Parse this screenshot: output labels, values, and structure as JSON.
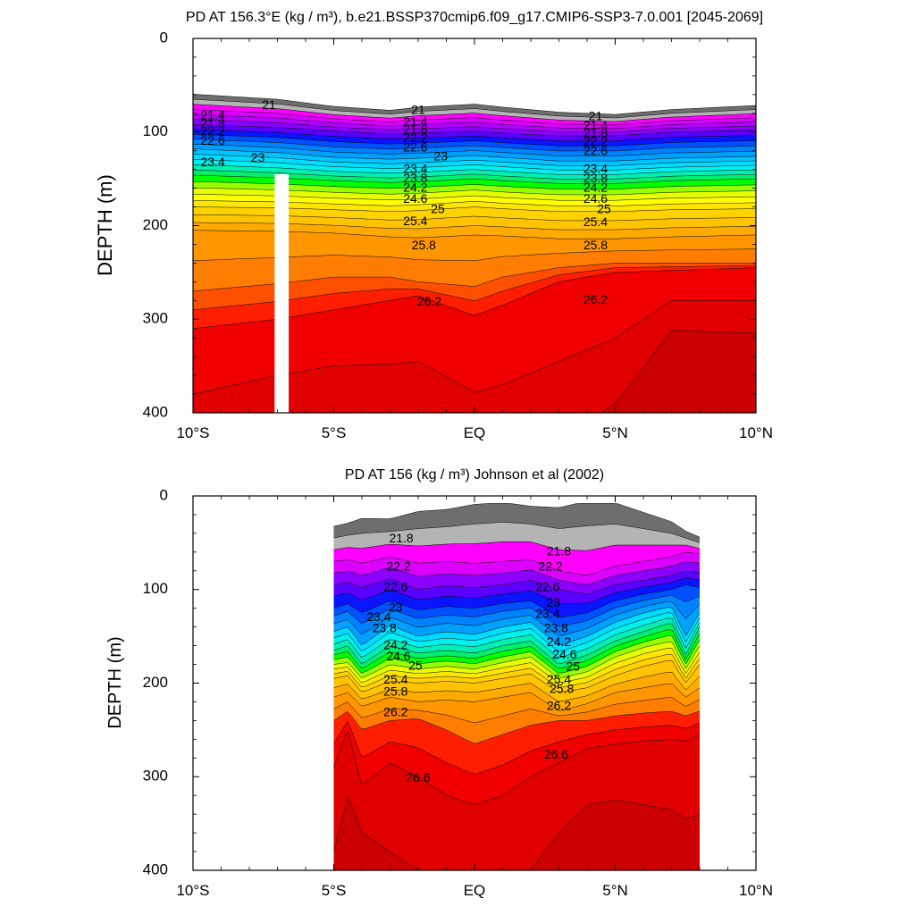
{
  "colors": {
    "isopycnal_fill": [
      "#6e6e6e",
      "#b4b4b4",
      "#ff00ff",
      "#dc00ff",
      "#b400ff",
      "#8c00ff",
      "#5a00ff",
      "#0a14ff",
      "#0050ff",
      "#0082ff",
      "#00a0ff",
      "#00c3ff",
      "#00dcff",
      "#00f0f0",
      "#00f0b4",
      "#00f06e",
      "#00ff00",
      "#96ff00",
      "#e6ff00",
      "#ffff00",
      "#ffe600",
      "#ffd200",
      "#ffc300",
      "#ffaa00",
      "#ff9600",
      "#ff7d00",
      "#ff5000",
      "#ff1e00",
      "#f00000",
      "#e00000",
      "#cc0000"
    ],
    "land_mask": "#b4b4b4",
    "missing": "#ffffff"
  },
  "chart_data": [
    {
      "type": "contour",
      "title": "PD AT 156.3°E (kg / m³), b.e21.BSSP370cmip6.f09_g17.CMIP6-SSP3-7.0.001 [2045-2069]",
      "ylabel": "DEPTH (m)",
      "xlabel": "",
      "xlim": [
        -10,
        10
      ],
      "ylim": [
        0,
        400
      ],
      "y_inverted": true,
      "x_ticks": [
        {
          "x": -10,
          "label": "10°S"
        },
        {
          "x": -5,
          "label": "5°S"
        },
        {
          "x": 0,
          "label": "EQ"
        },
        {
          "x": 5,
          "label": "5°N"
        },
        {
          "x": 10,
          "label": "10°N"
        }
      ],
      "y_ticks": [
        {
          "y": 0,
          "label": "0"
        },
        {
          "y": 100,
          "label": "100"
        },
        {
          "y": 200,
          "label": "200"
        },
        {
          "y": 300,
          "label": "300"
        },
        {
          "y": 400,
          "label": "400"
        }
      ],
      "contour_interval": 0.2,
      "contour_levels_range": [
        20.8,
        26.8
      ],
      "data_extent": [
        -10,
        10
      ],
      "missing_band": [
        -7.1,
        -6.6,
        145
      ],
      "isopycnal_depth_points": {
        "x": [
          -10,
          -7,
          -5,
          -3,
          -2,
          0,
          1,
          3,
          5,
          7,
          10
        ],
        "21.0": [
          65,
          70,
          77,
          81,
          78,
          75,
          78,
          83,
          85,
          80,
          76
        ],
        "22.0": [
          92,
          95,
          99,
          102,
          101,
          99,
          101,
          104,
          104,
          100,
          98
        ],
        "23.0": [
          118,
          122,
          127,
          129,
          128,
          125,
          127,
          131,
          131,
          128,
          126
        ],
        "24.0": [
          146,
          149,
          152,
          154,
          153,
          150,
          152,
          155,
          155,
          152,
          150
        ],
        "25.0": [
          180,
          181,
          183,
          185,
          184,
          180,
          182,
          185,
          185,
          183,
          182
        ],
        "25.6": [
          205,
          206,
          208,
          212,
          213,
          210,
          211,
          214,
          214,
          212,
          210
        ],
        "26.0": [
          270,
          262,
          255,
          255,
          260,
          265,
          255,
          245,
          240,
          240,
          240
        ],
        "26.4": [
          310,
          300,
          290,
          280,
          275,
          296,
          285,
          260,
          250,
          248,
          245
        ],
        "26.6": [
          380,
          360,
          350,
          348,
          345,
          378,
          370,
          345,
          320,
          280,
          280
        ]
      },
      "labels": [
        {
          "x": -7.3,
          "y": 72,
          "text": "21"
        },
        {
          "x": -9.3,
          "y": 83,
          "text": "21.4"
        },
        {
          "x": -9.3,
          "y": 92,
          "text": "21.8"
        },
        {
          "x": -9.3,
          "y": 100,
          "text": "22.2"
        },
        {
          "x": -9.3,
          "y": 110,
          "text": "22.6"
        },
        {
          "x": -9.3,
          "y": 133,
          "text": "23.4"
        },
        {
          "x": -7.7,
          "y": 128,
          "text": "23"
        },
        {
          "x": -2,
          "y": 77,
          "text": "21"
        },
        {
          "x": -2.1,
          "y": 90,
          "text": "21.4"
        },
        {
          "x": -2.1,
          "y": 98,
          "text": "21.8"
        },
        {
          "x": -2.1,
          "y": 107,
          "text": "22.2"
        },
        {
          "x": -2.1,
          "y": 117,
          "text": "22.6"
        },
        {
          "x": -1.2,
          "y": 127,
          "text": "23"
        },
        {
          "x": -2.1,
          "y": 140,
          "text": "23.4"
        },
        {
          "x": -2.1,
          "y": 150,
          "text": "23.8"
        },
        {
          "x": -2.1,
          "y": 160,
          "text": "24.2"
        },
        {
          "x": -2.1,
          "y": 172,
          "text": "24.6"
        },
        {
          "x": -1.3,
          "y": 183,
          "text": "25"
        },
        {
          "x": -2.1,
          "y": 196,
          "text": "25.4"
        },
        {
          "x": -1.8,
          "y": 222,
          "text": "25.8"
        },
        {
          "x": -1.6,
          "y": 282,
          "text": "26.2"
        },
        {
          "x": 4.3,
          "y": 84,
          "text": "21"
        },
        {
          "x": 4.3,
          "y": 94,
          "text": "21.4"
        },
        {
          "x": 4.3,
          "y": 102,
          "text": "21.8"
        },
        {
          "x": 4.3,
          "y": 111,
          "text": "22.2"
        },
        {
          "x": 4.3,
          "y": 121,
          "text": "22.6"
        },
        {
          "x": 4.3,
          "y": 140,
          "text": "23.4"
        },
        {
          "x": 4.3,
          "y": 150,
          "text": "23.8"
        },
        {
          "x": 4.3,
          "y": 160,
          "text": "24.2"
        },
        {
          "x": 4.3,
          "y": 172,
          "text": "24.6"
        },
        {
          "x": 4.6,
          "y": 183,
          "text": "25"
        },
        {
          "x": 4.3,
          "y": 197,
          "text": "25.4"
        },
        {
          "x": 4.3,
          "y": 222,
          "text": "25.8"
        },
        {
          "x": 4.3,
          "y": 280,
          "text": "26.2"
        }
      ]
    },
    {
      "type": "contour",
      "title": "PD AT 156 (kg / m³) Johnson et al (2002)",
      "ylabel": "DEPTH (m)",
      "xlabel": "",
      "xlim": [
        -10,
        10
      ],
      "ylim": [
        0,
        400
      ],
      "y_inverted": true,
      "x_ticks": [
        {
          "x": -10,
          "label": "10°S"
        },
        {
          "x": -5,
          "label": "5°S"
        },
        {
          "x": 0,
          "label": "EQ"
        },
        {
          "x": 5,
          "label": "5°N"
        },
        {
          "x": 10,
          "label": "10°N"
        }
      ],
      "y_ticks": [
        {
          "y": 0,
          "label": "0"
        },
        {
          "y": 100,
          "label": "100"
        },
        {
          "y": 200,
          "label": "200"
        },
        {
          "y": 300,
          "label": "300"
        },
        {
          "y": 400,
          "label": "400"
        }
      ],
      "contour_interval": 0.2,
      "contour_levels_range": [
        21.6,
        26.8
      ],
      "data_extent": [
        -5,
        8
      ],
      "isopycnal_depth_points": {
        "x": [
          -5,
          -4.5,
          -4,
          -3,
          -2,
          -1,
          0,
          1,
          2,
          3,
          4,
          5,
          6,
          7,
          7.5,
          8
        ],
        "21.8": [
          45,
          42,
          40,
          38,
          35,
          33,
          30,
          28,
          30,
          35,
          32,
          30,
          35,
          40,
          45,
          50
        ],
        "22.2": [
          70,
          68,
          72,
          65,
          72,
          70,
          72,
          70,
          68,
          80,
          85,
          75,
          70,
          65,
          60,
          62
        ],
        "22.6": [
          95,
          92,
          98,
          88,
          100,
          96,
          98,
          95,
          90,
          100,
          105,
          95,
          90,
          85,
          80,
          82
        ],
        "23.0": [
          120,
          115,
          125,
          112,
          122,
          118,
          120,
          115,
          112,
          130,
          125,
          112,
          105,
          100,
          95,
          98
        ],
        "23.6": [
          145,
          140,
          160,
          138,
          150,
          145,
          148,
          140,
          135,
          160,
          150,
          135,
          125,
          118,
          150,
          125
        ],
        "24.2": [
          165,
          160,
          180,
          160,
          168,
          165,
          168,
          160,
          155,
          180,
          170,
          155,
          145,
          135,
          170,
          140
        ],
        "24.8": [
          180,
          178,
          195,
          180,
          185,
          182,
          185,
          178,
          172,
          195,
          188,
          172,
          162,
          155,
          185,
          160
        ],
        "25.4": [
          195,
          192,
          210,
          198,
          200,
          198,
          200,
          195,
          190,
          210,
          205,
          192,
          182,
          175,
          200,
          180
        ],
        "25.8": [
          215,
          210,
          225,
          215,
          220,
          218,
          220,
          215,
          210,
          230,
          222,
          210,
          205,
          200,
          215,
          205
        ],
        "26.2": [
          240,
          230,
          250,
          240,
          238,
          250,
          265,
          255,
          245,
          240,
          240,
          235,
          232,
          230,
          235,
          230
        ],
        "26.6": [
          290,
          250,
          310,
          285,
          300,
          320,
          330,
          320,
          300,
          285,
          270,
          265,
          262,
          260,
          262,
          255
        ],
        "26.8": [
          380,
          320,
          360,
          380,
          400,
          400,
          400,
          400,
          400,
          360,
          330,
          325,
          330,
          335,
          345,
          340
        ]
      },
      "labels": [
        {
          "x": -2.6,
          "y": 46,
          "text": "21.8"
        },
        {
          "x": -2.7,
          "y": 76,
          "text": "22.2"
        },
        {
          "x": -2.8,
          "y": 98,
          "text": "22.6"
        },
        {
          "x": -2.8,
          "y": 120,
          "text": "23"
        },
        {
          "x": -3.4,
          "y": 130,
          "text": "23.4"
        },
        {
          "x": -3.2,
          "y": 142,
          "text": "23.8"
        },
        {
          "x": -2.8,
          "y": 160,
          "text": "24.2"
        },
        {
          "x": -2.7,
          "y": 172,
          "text": "24.6"
        },
        {
          "x": -2.1,
          "y": 182,
          "text": "25"
        },
        {
          "x": -2.8,
          "y": 197,
          "text": "25.4"
        },
        {
          "x": -2.8,
          "y": 210,
          "text": "25.8"
        },
        {
          "x": -2.8,
          "y": 232,
          "text": "26.2"
        },
        {
          "x": -2.0,
          "y": 302,
          "text": "26.6"
        },
        {
          "x": 3.0,
          "y": 60,
          "text": "21.8"
        },
        {
          "x": 2.7,
          "y": 76,
          "text": "22.2"
        },
        {
          "x": 2.6,
          "y": 98,
          "text": "22.6"
        },
        {
          "x": 2.8,
          "y": 115,
          "text": "23"
        },
        {
          "x": 2.6,
          "y": 127,
          "text": "23.4"
        },
        {
          "x": 2.9,
          "y": 142,
          "text": "23.8"
        },
        {
          "x": 3.0,
          "y": 157,
          "text": "24.2"
        },
        {
          "x": 3.2,
          "y": 170,
          "text": "24.6"
        },
        {
          "x": 3.5,
          "y": 183,
          "text": "25"
        },
        {
          "x": 3.0,
          "y": 197,
          "text": "25.4"
        },
        {
          "x": 3.1,
          "y": 207,
          "text": "25.8"
        },
        {
          "x": 3.0,
          "y": 225,
          "text": "26.2"
        },
        {
          "x": 2.9,
          "y": 277,
          "text": "26.6"
        }
      ]
    }
  ]
}
